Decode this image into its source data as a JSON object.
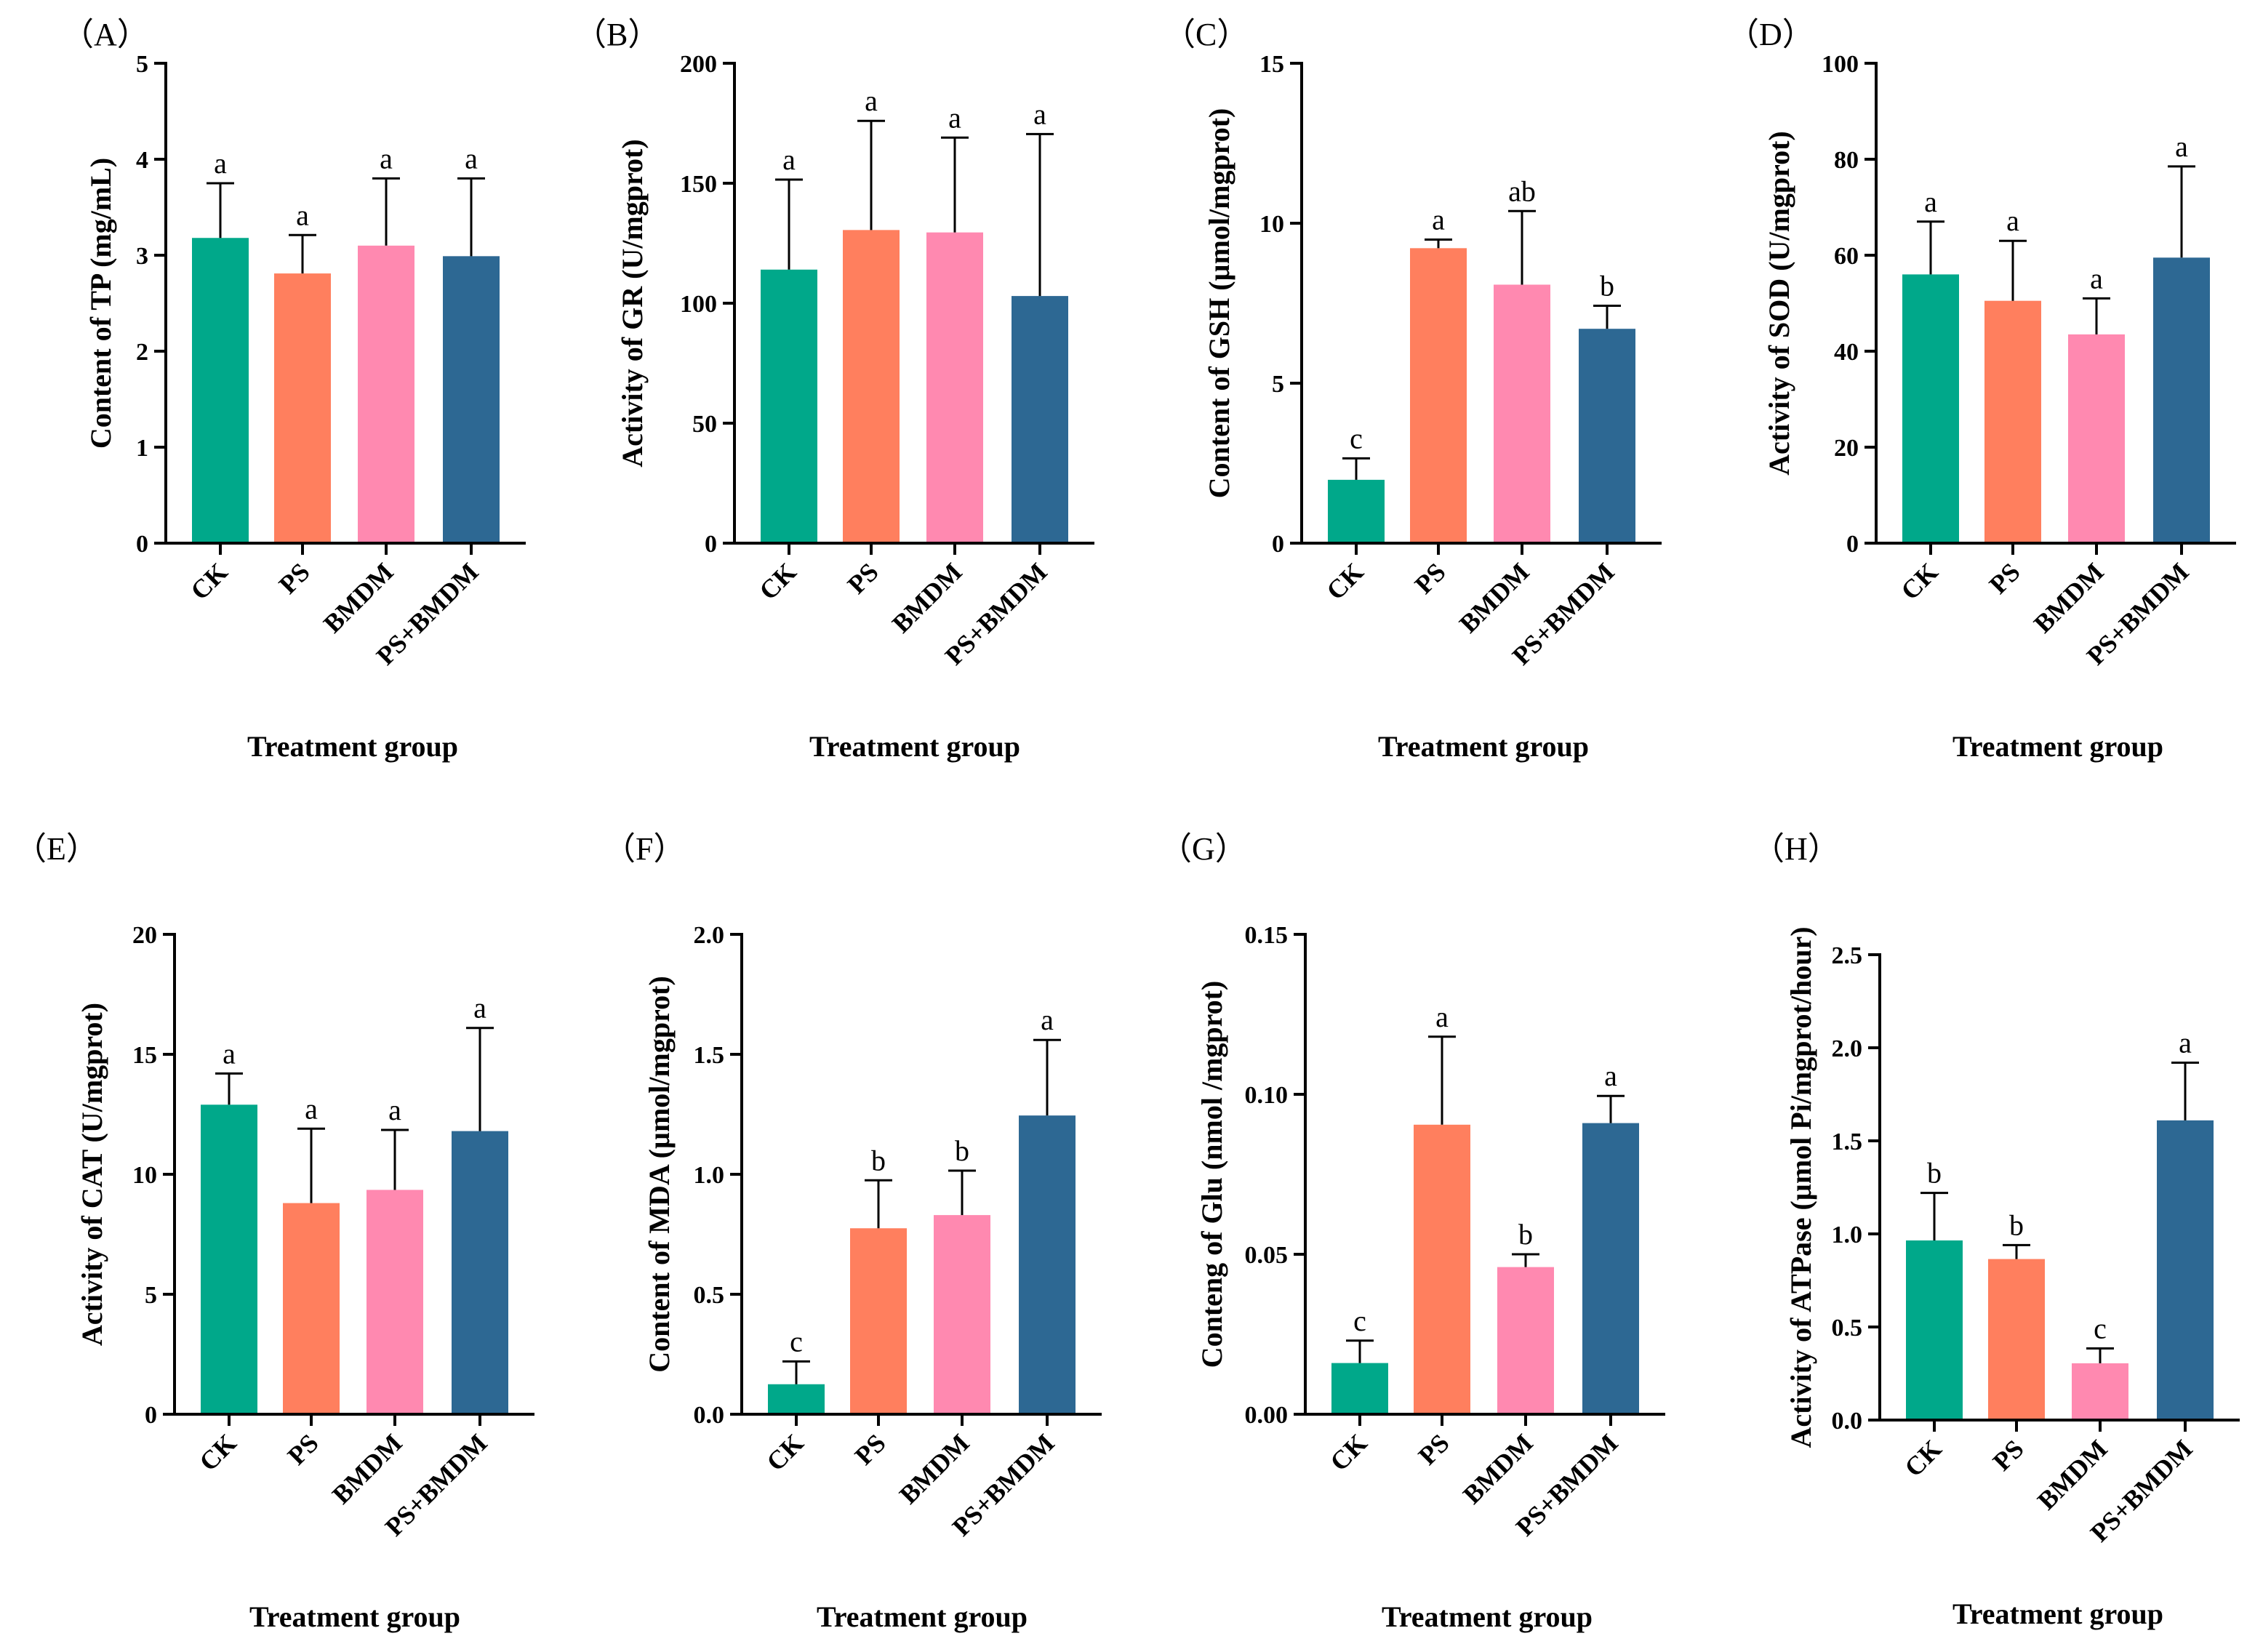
{
  "colors": {
    "CK": "#00a88a",
    "PS": "#ff7f5e",
    "BMDM": "#ff89b0",
    "PS+BMDM": "#2d6893"
  },
  "chart_data": [
    {
      "type": "bar",
      "panel_label": "（A）",
      "ylabel": "Content of TP (mg/mL)",
      "xlabel": "Treatment group",
      "categories": [
        "CK",
        "PS",
        "BMDM",
        "PS+BMDM"
      ],
      "values": [
        3.18,
        2.81,
        3.1,
        2.99
      ],
      "errors": [
        0.57,
        0.4,
        0.7,
        0.81
      ],
      "significance": [
        "a",
        "a",
        "a",
        "a"
      ],
      "ylim": [
        0,
        5
      ],
      "yticks": [
        0,
        1,
        2,
        3,
        4,
        5
      ],
      "ytick_labels": [
        "0",
        "1",
        "2",
        "3",
        "4",
        "5"
      ]
    },
    {
      "type": "bar",
      "panel_label": "（B）",
      "ylabel": "Activity of GR (U/mgprot)",
      "xlabel": "Treatment group",
      "categories": [
        "CK",
        "PS",
        "BMDM",
        "PS+BMDM"
      ],
      "values": [
        114,
        130.5,
        129.5,
        103
      ],
      "errors": [
        37.5,
        45.5,
        39.5,
        67.5
      ],
      "significance": [
        "a",
        "a",
        "a",
        "a"
      ],
      "ylim": [
        0,
        200
      ],
      "yticks": [
        0,
        50,
        100,
        150,
        200
      ],
      "ytick_labels": [
        "0",
        "50",
        "100",
        "150",
        "200"
      ]
    },
    {
      "type": "bar",
      "panel_label": "（C）",
      "ylabel": "Content of GSH (µmol/mgprot)",
      "xlabel": "Treatment group",
      "categories": [
        "CK",
        "PS",
        "BMDM",
        "PS+BMDM"
      ],
      "values": [
        1.98,
        9.22,
        8.08,
        6.7
      ],
      "errors": [
        0.67,
        0.27,
        2.3,
        0.72
      ],
      "significance": [
        "c",
        "a",
        "ab",
        "b"
      ],
      "ylim": [
        0,
        15
      ],
      "yticks": [
        0,
        5,
        10,
        15
      ],
      "ytick_labels": [
        "0",
        "5",
        "10",
        "15"
      ]
    },
    {
      "type": "bar",
      "panel_label": "（D）",
      "ylabel": "Activity of SOD (U/mgprot)",
      "xlabel": "Treatment group",
      "categories": [
        "CK",
        "PS",
        "BMDM",
        "PS+BMDM"
      ],
      "values": [
        56,
        50.5,
        43.5,
        59.5
      ],
      "errors": [
        11,
        12.5,
        7.5,
        19
      ],
      "significance": [
        "a",
        "a",
        "a",
        "a"
      ],
      "ylim": [
        0,
        100
      ],
      "yticks": [
        0,
        20,
        40,
        60,
        80,
        100
      ],
      "ytick_labels": [
        "0",
        "20",
        "40",
        "60",
        "80",
        "100"
      ]
    },
    {
      "type": "bar",
      "panel_label": "（E）",
      "ylabel": "Activity of CAT (U/mgprot)",
      "xlabel": "Treatment group",
      "categories": [
        "CK",
        "PS",
        "BMDM",
        "PS+BMDM"
      ],
      "values": [
        12.9,
        8.8,
        9.35,
        11.8
      ],
      "errors": [
        1.3,
        3.1,
        2.5,
        4.3
      ],
      "significance": [
        "a",
        "a",
        "a",
        "a"
      ],
      "ylim": [
        0,
        20
      ],
      "yticks": [
        0,
        5,
        10,
        15,
        20
      ],
      "ytick_labels": [
        "0",
        "5",
        "10",
        "15",
        "20"
      ]
    },
    {
      "type": "bar",
      "panel_label": "（F）",
      "ylabel": "Content of MDA (µmol/mgprot)",
      "xlabel": "Treatment group",
      "categories": [
        "CK",
        "PS",
        "BMDM",
        "PS+BMDM"
      ],
      "values": [
        0.125,
        0.775,
        0.83,
        1.245
      ],
      "errors": [
        0.095,
        0.2,
        0.185,
        0.315
      ],
      "significance": [
        "c",
        "b",
        "b",
        "a"
      ],
      "ylim": [
        0,
        2.0
      ],
      "yticks": [
        0,
        0.5,
        1.0,
        1.5,
        2.0
      ],
      "ytick_labels": [
        "0.0",
        "0.5",
        "1.0",
        "1.5",
        "2.0"
      ]
    },
    {
      "type": "bar",
      "panel_label": "（G）",
      "ylabel": "Conteng of Glu (nmol /mgprot)",
      "xlabel": "Treatment group",
      "categories": [
        "CK",
        "PS",
        "BMDM",
        "PS+BMDM"
      ],
      "values": [
        0.016,
        0.0905,
        0.046,
        0.091
      ],
      "errors": [
        0.007,
        0.0275,
        0.004,
        0.0085
      ],
      "significance": [
        "c",
        "a",
        "b",
        "a"
      ],
      "ylim": [
        0,
        0.15
      ],
      "yticks": [
        0,
        0.05,
        0.1,
        0.15
      ],
      "ytick_labels": [
        "0.00",
        "0.05",
        "0.10",
        "0.15"
      ]
    },
    {
      "type": "bar",
      "panel_label": "（H）",
      "ylabel": "Activity of ATPase (µmol Pi/mgprot/hour)",
      "xlabel": "Treatment group",
      "categories": [
        "CK",
        "PS",
        "BMDM",
        "PS+BMDM"
      ],
      "values": [
        0.965,
        0.865,
        0.305,
        1.61
      ],
      "errors": [
        0.255,
        0.075,
        0.08,
        0.31
      ],
      "significance": [
        "b",
        "b",
        "c",
        "a"
      ],
      "ylim": [
        0,
        2.5
      ],
      "yticks": [
        0,
        0.5,
        1.0,
        1.5,
        2.0,
        2.5
      ],
      "ytick_labels": [
        "0.0",
        "0.5",
        "1.0",
        "1.5",
        "2.0",
        "2.5"
      ]
    }
  ]
}
